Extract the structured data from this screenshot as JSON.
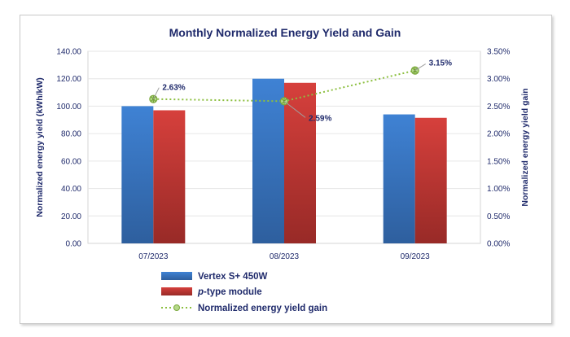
{
  "chart_data": {
    "type": "bar",
    "title": "Monthly Normalized Energy Yield and Gain",
    "categories": [
      "07/2023",
      "08/2023",
      "09/2023"
    ],
    "ylabel": "Normalized energy yield  (kWh/kW)",
    "y2label": "Normalized energy yield gain",
    "ylim": [
      0,
      140
    ],
    "y2lim": [
      0,
      0.035
    ],
    "yticks": [
      "0.00",
      "20.00",
      "40.00",
      "60.00",
      "80.00",
      "100.00",
      "120.00",
      "140.00"
    ],
    "y2ticks": [
      "0.00%",
      "0.50%",
      "1.00%",
      "1.50%",
      "2.00%",
      "2.50%",
      "3.00%",
      "3.50%"
    ],
    "series": [
      {
        "name": "Vertex S+ 450W",
        "type": "bar",
        "color": "#3a78c4",
        "values": [
          100,
          120,
          94
        ]
      },
      {
        "name": "p-type module",
        "type": "bar",
        "color": "#c43a36",
        "values": [
          97,
          117,
          91.5
        ]
      },
      {
        "name": "Normalized energy yield gain",
        "type": "line",
        "axis": "right",
        "color": "#8cbf3f",
        "values": [
          0.0263,
          0.0259,
          0.0315
        ],
        "labels": [
          "2.63%",
          "2.59%",
          "3.15%"
        ]
      }
    ],
    "legend": {
      "position": "bottom",
      "items": [
        {
          "prefix": "",
          "italic": "",
          "suffix": "Vertex S+ 450W"
        },
        {
          "prefix": "",
          "italic": "p",
          "suffix": "-type module"
        },
        {
          "prefix": "",
          "italic": "",
          "suffix": "Normalized energy yield gain"
        }
      ]
    }
  }
}
